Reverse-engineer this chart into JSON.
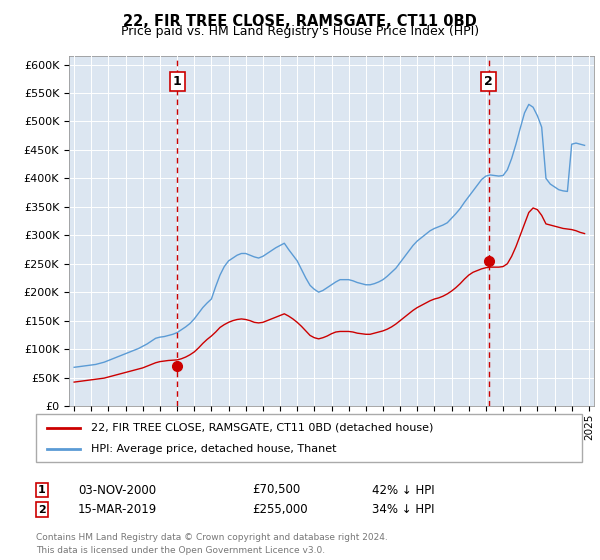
{
  "title": "22, FIR TREE CLOSE, RAMSGATE, CT11 0BD",
  "subtitle": "Price paid vs. HM Land Registry's House Price Index (HPI)",
  "ylabel_ticks": [
    "£0",
    "£50K",
    "£100K",
    "£150K",
    "£200K",
    "£250K",
    "£300K",
    "£350K",
    "£400K",
    "£450K",
    "£500K",
    "£550K",
    "£600K"
  ],
  "ytick_values": [
    0,
    50000,
    100000,
    150000,
    200000,
    250000,
    300000,
    350000,
    400000,
    450000,
    500000,
    550000,
    600000
  ],
  "ylim": [
    0,
    615000
  ],
  "xlim_start": 1994.7,
  "xlim_end": 2025.3,
  "plot_bg_color": "#dce6f1",
  "red_line_color": "#cc0000",
  "blue_line_color": "#5b9bd5",
  "marker1_date": 2001.0,
  "marker1_value": 70500,
  "marker2_date": 2019.17,
  "marker2_value": 255000,
  "legend_line1": "22, FIR TREE CLOSE, RAMSGATE, CT11 0BD (detached house)",
  "legend_line2": "HPI: Average price, detached house, Thanet",
  "footer": "Contains HM Land Registry data © Crown copyright and database right 2024.\nThis data is licensed under the Open Government Licence v3.0.",
  "hpi_x": [
    1995,
    1995.25,
    1995.5,
    1995.75,
    1996,
    1996.25,
    1996.5,
    1996.75,
    1997,
    1997.25,
    1997.5,
    1997.75,
    1998,
    1998.25,
    1998.5,
    1998.75,
    1999,
    1999.25,
    1999.5,
    1999.75,
    2000,
    2000.25,
    2000.5,
    2000.75,
    2001,
    2001.25,
    2001.5,
    2001.75,
    2002,
    2002.25,
    2002.5,
    2002.75,
    2003,
    2003.25,
    2003.5,
    2003.75,
    2004,
    2004.25,
    2004.5,
    2004.75,
    2005,
    2005.25,
    2005.5,
    2005.75,
    2006,
    2006.25,
    2006.5,
    2006.75,
    2007,
    2007.25,
    2007.5,
    2007.75,
    2008,
    2008.25,
    2008.5,
    2008.75,
    2009,
    2009.25,
    2009.5,
    2009.75,
    2010,
    2010.25,
    2010.5,
    2010.75,
    2011,
    2011.25,
    2011.5,
    2011.75,
    2012,
    2012.25,
    2012.5,
    2012.75,
    2013,
    2013.25,
    2013.5,
    2013.75,
    2014,
    2014.25,
    2014.5,
    2014.75,
    2015,
    2015.25,
    2015.5,
    2015.75,
    2016,
    2016.25,
    2016.5,
    2016.75,
    2017,
    2017.25,
    2017.5,
    2017.75,
    2018,
    2018.25,
    2018.5,
    2018.75,
    2019,
    2019.25,
    2019.5,
    2019.75,
    2020,
    2020.25,
    2020.5,
    2020.75,
    2021,
    2021.25,
    2021.5,
    2021.75,
    2022,
    2022.25,
    2022.5,
    2022.75,
    2023,
    2023.25,
    2023.5,
    2023.75,
    2024,
    2024.25,
    2024.5,
    2024.75
  ],
  "hpi_y": [
    68000,
    69000,
    70000,
    71000,
    72000,
    73000,
    75000,
    77000,
    80000,
    83000,
    86000,
    89000,
    92000,
    95000,
    98000,
    101000,
    105000,
    109000,
    114000,
    119000,
    121000,
    122000,
    124000,
    126000,
    129000,
    134000,
    139000,
    145000,
    153000,
    163000,
    173000,
    181000,
    188000,
    210000,
    230000,
    245000,
    255000,
    260000,
    265000,
    268000,
    268000,
    265000,
    262000,
    260000,
    263000,
    268000,
    273000,
    278000,
    282000,
    286000,
    275000,
    265000,
    255000,
    240000,
    225000,
    212000,
    205000,
    200000,
    203000,
    208000,
    213000,
    218000,
    222000,
    222000,
    222000,
    220000,
    217000,
    215000,
    213000,
    213000,
    215000,
    218000,
    222000,
    228000,
    235000,
    242000,
    252000,
    262000,
    272000,
    282000,
    290000,
    296000,
    302000,
    308000,
    312000,
    315000,
    318000,
    322000,
    330000,
    338000,
    347000,
    358000,
    368000,
    378000,
    388000,
    398000,
    404000,
    406000,
    405000,
    404000,
    405000,
    415000,
    435000,
    460000,
    488000,
    515000,
    530000,
    525000,
    510000,
    490000,
    400000,
    390000,
    385000,
    380000,
    378000,
    377000,
    460000,
    462000,
    460000,
    458000
  ],
  "red_x": [
    1995,
    1995.25,
    1995.5,
    1995.75,
    1996,
    1996.25,
    1996.5,
    1996.75,
    1997,
    1997.25,
    1997.5,
    1997.75,
    1998,
    1998.25,
    1998.5,
    1998.75,
    1999,
    1999.25,
    1999.5,
    1999.75,
    2000,
    2000.25,
    2000.5,
    2000.75,
    2001,
    2001.25,
    2001.5,
    2001.75,
    2002,
    2002.25,
    2002.5,
    2002.75,
    2003,
    2003.25,
    2003.5,
    2003.75,
    2004,
    2004.25,
    2004.5,
    2004.75,
    2005,
    2005.25,
    2005.5,
    2005.75,
    2006,
    2006.25,
    2006.5,
    2006.75,
    2007,
    2007.25,
    2007.5,
    2007.75,
    2008,
    2008.25,
    2008.5,
    2008.75,
    2009,
    2009.25,
    2009.5,
    2009.75,
    2010,
    2010.25,
    2010.5,
    2010.75,
    2011,
    2011.25,
    2011.5,
    2011.75,
    2012,
    2012.25,
    2012.5,
    2012.75,
    2013,
    2013.25,
    2013.5,
    2013.75,
    2014,
    2014.25,
    2014.5,
    2014.75,
    2015,
    2015.25,
    2015.5,
    2015.75,
    2016,
    2016.25,
    2016.5,
    2016.75,
    2017,
    2017.25,
    2017.5,
    2017.75,
    2018,
    2018.25,
    2018.5,
    2018.75,
    2019,
    2019.25,
    2019.5,
    2019.75,
    2020,
    2020.25,
    2020.5,
    2020.75,
    2021,
    2021.25,
    2021.5,
    2021.75,
    2022,
    2022.25,
    2022.5,
    2022.75,
    2023,
    2023.25,
    2023.5,
    2023.75,
    2024,
    2024.25,
    2024.5,
    2024.75
  ],
  "red_y": [
    42000,
    43000,
    44000,
    45000,
    46000,
    47000,
    48000,
    49000,
    51000,
    53000,
    55000,
    57000,
    59000,
    61000,
    63000,
    65000,
    67000,
    70000,
    73000,
    76000,
    78000,
    79000,
    80000,
    80500,
    81000,
    83000,
    86000,
    90000,
    95000,
    102000,
    110000,
    117000,
    123000,
    130000,
    138000,
    143000,
    147000,
    150000,
    152000,
    153000,
    152000,
    150000,
    147000,
    146000,
    147000,
    150000,
    153000,
    156000,
    159000,
    162000,
    158000,
    153000,
    147000,
    140000,
    132000,
    124000,
    120000,
    118000,
    120000,
    123000,
    127000,
    130000,
    131000,
    131000,
    131000,
    130000,
    128000,
    127000,
    126000,
    126000,
    128000,
    130000,
    132000,
    135000,
    139000,
    144000,
    150000,
    156000,
    162000,
    168000,
    173000,
    177000,
    181000,
    185000,
    188000,
    190000,
    193000,
    197000,
    202000,
    208000,
    215000,
    223000,
    230000,
    235000,
    238000,
    241000,
    243000,
    244000,
    244000,
    244000,
    245000,
    250000,
    263000,
    280000,
    300000,
    320000,
    340000,
    348000,
    345000,
    335000,
    320000,
    318000,
    316000,
    314000,
    312000,
    311000,
    310000,
    308000,
    305000,
    303000
  ],
  "xticks": [
    1995,
    1996,
    1997,
    1998,
    1999,
    2000,
    2001,
    2002,
    2003,
    2004,
    2005,
    2006,
    2007,
    2008,
    2009,
    2010,
    2011,
    2012,
    2013,
    2014,
    2015,
    2016,
    2017,
    2018,
    2019,
    2020,
    2021,
    2022,
    2023,
    2024,
    2025
  ]
}
